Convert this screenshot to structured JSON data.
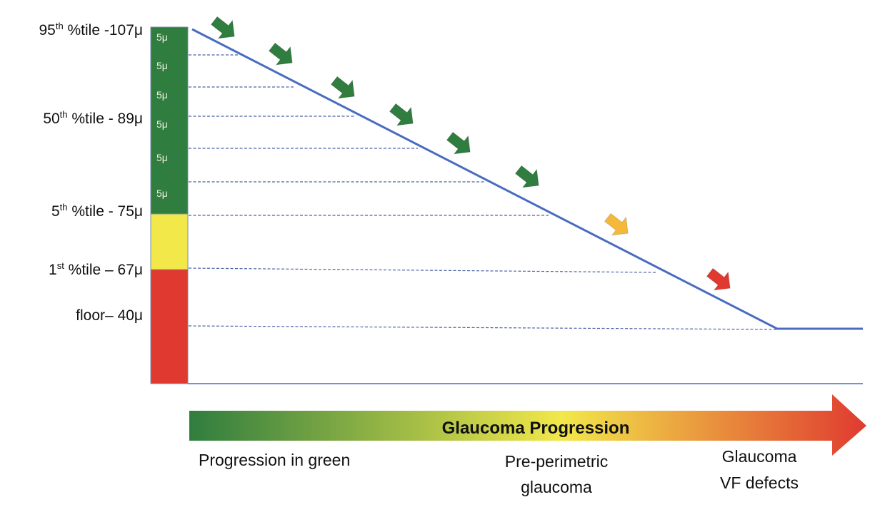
{
  "percentile_labels": [
    {
      "value_prefix": "95",
      "sup": "th",
      "rest": " %tile -107μ"
    },
    {
      "value_prefix": "50",
      "sup": "th",
      "rest": " %tile - 89μ"
    },
    {
      "value_prefix": "5",
      "sup": "th",
      "rest": " %tile - 75μ"
    },
    {
      "value_prefix": "1",
      "sup": "st",
      "rest": " %tile – 67μ"
    },
    {
      "value_prefix": "floor– 40μ",
      "sup": "",
      "rest": ""
    }
  ],
  "segments": [
    "5μ",
    "5μ",
    "5μ",
    "5μ",
    "5μ",
    "5μ"
  ],
  "zone_colors": {
    "green": "#2f7d3f",
    "yellow": "#f2e84a",
    "red": "#e03a30",
    "line": "#4a6cc0"
  },
  "arrow_colors": [
    "#2f7d3f",
    "#2f7d3f",
    "#2f7d3f",
    "#2f7d3f",
    "#2f7d3f",
    "#2f7d3f",
    "#f5b93a",
    "#e03a30"
  ],
  "progression_arrow": {
    "label": "Glaucoma Progression",
    "gradient": [
      "#2f7d3f",
      "#f2e84a",
      "#e03a30"
    ]
  },
  "stage_labels": {
    "green": "Progression in green",
    "preperimetric": [
      "Pre-perimetric",
      "glaucoma"
    ],
    "vf": [
      "Glaucoma",
      "VF defects"
    ]
  }
}
